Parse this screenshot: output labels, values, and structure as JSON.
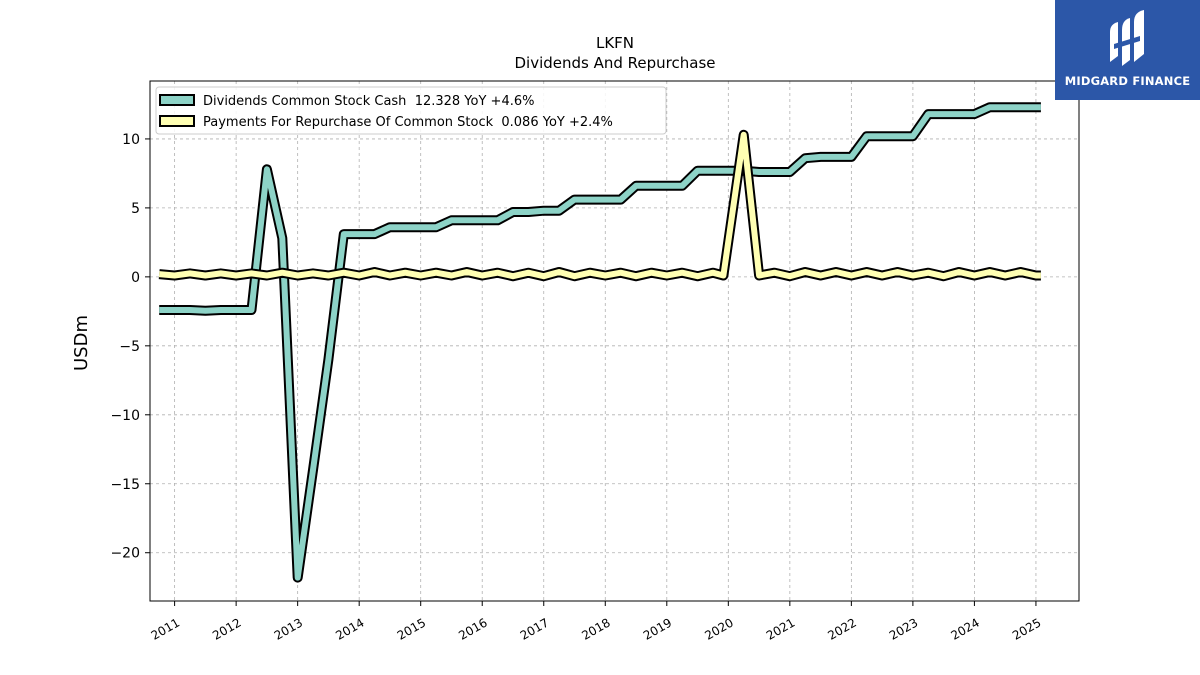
{
  "chart_data": {
    "type": "line",
    "title": "LKFN",
    "subtitle": "Dividends And Repurchase",
    "ylabel": "USDm",
    "xlabel": "",
    "xlim": [
      2010.6,
      2025.7
    ],
    "ylim": [
      -23.5,
      14.2
    ],
    "yticks": [
      -20,
      -15,
      -10,
      -5,
      0,
      5,
      10
    ],
    "xticks": [
      "2011",
      "2012",
      "2013",
      "2014",
      "2015",
      "2016",
      "2017",
      "2018",
      "2019",
      "2020",
      "2021",
      "2022",
      "2023",
      "2024",
      "2025"
    ],
    "grid": true,
    "legend_position": "upper left",
    "series": [
      {
        "name": "Dividends Common Stock Cash  12.328 YoY +4.6%",
        "color": "#8dd3c7",
        "points": [
          [
            2010.75,
            -2.4
          ],
          [
            2011.0,
            -2.4
          ],
          [
            2011.25,
            -2.4
          ],
          [
            2011.5,
            -2.45
          ],
          [
            2011.75,
            -2.4
          ],
          [
            2012.0,
            -2.4
          ],
          [
            2012.25,
            -2.4
          ],
          [
            2012.5,
            7.8
          ],
          [
            2012.75,
            2.8
          ],
          [
            2013.0,
            -21.8
          ],
          [
            2013.25,
            -14.0
          ],
          [
            2013.5,
            -6.0
          ],
          [
            2013.75,
            3.1
          ],
          [
            2014.0,
            3.1
          ],
          [
            2014.25,
            3.1
          ],
          [
            2014.5,
            3.6
          ],
          [
            2014.75,
            3.6
          ],
          [
            2015.0,
            3.6
          ],
          [
            2015.25,
            3.6
          ],
          [
            2015.5,
            4.1
          ],
          [
            2015.75,
            4.1
          ],
          [
            2016.0,
            4.1
          ],
          [
            2016.25,
            4.1
          ],
          [
            2016.5,
            4.7
          ],
          [
            2016.75,
            4.7
          ],
          [
            2017.0,
            4.8
          ],
          [
            2017.25,
            4.8
          ],
          [
            2017.5,
            5.6
          ],
          [
            2017.75,
            5.6
          ],
          [
            2018.0,
            5.6
          ],
          [
            2018.25,
            5.6
          ],
          [
            2018.5,
            6.6
          ],
          [
            2018.75,
            6.6
          ],
          [
            2019.0,
            6.6
          ],
          [
            2019.25,
            6.6
          ],
          [
            2019.5,
            7.7
          ],
          [
            2019.75,
            7.7
          ],
          [
            2020.0,
            7.7
          ],
          [
            2020.25,
            7.7
          ],
          [
            2020.5,
            7.6
          ],
          [
            2020.75,
            7.6
          ],
          [
            2021.0,
            7.6
          ],
          [
            2021.25,
            8.6
          ],
          [
            2021.5,
            8.7
          ],
          [
            2021.75,
            8.7
          ],
          [
            2022.0,
            8.7
          ],
          [
            2022.25,
            10.2
          ],
          [
            2022.5,
            10.2
          ],
          [
            2022.75,
            10.2
          ],
          [
            2023.0,
            10.2
          ],
          [
            2023.25,
            11.8
          ],
          [
            2023.5,
            11.8
          ],
          [
            2023.75,
            11.8
          ],
          [
            2024.0,
            11.8
          ],
          [
            2024.25,
            12.3
          ],
          [
            2024.5,
            12.3
          ],
          [
            2024.75,
            12.3
          ],
          [
            2025.0,
            12.3
          ],
          [
            2025.08,
            12.3
          ]
        ]
      },
      {
        "name": "Payments For Repurchase Of Common Stock  0.086 YoY +2.4%",
        "color": "#ffffb3",
        "points": [
          [
            2010.75,
            0.2
          ],
          [
            2011.0,
            0.1
          ],
          [
            2011.25,
            0.25
          ],
          [
            2011.5,
            0.1
          ],
          [
            2011.75,
            0.25
          ],
          [
            2012.0,
            0.1
          ],
          [
            2012.25,
            0.25
          ],
          [
            2012.5,
            0.1
          ],
          [
            2012.75,
            0.3
          ],
          [
            2013.0,
            0.1
          ],
          [
            2013.25,
            0.25
          ],
          [
            2013.5,
            0.1
          ],
          [
            2013.75,
            0.3
          ],
          [
            2014.0,
            0.1
          ],
          [
            2014.25,
            0.35
          ],
          [
            2014.5,
            0.1
          ],
          [
            2014.75,
            0.3
          ],
          [
            2015.0,
            0.1
          ],
          [
            2015.25,
            0.3
          ],
          [
            2015.5,
            0.1
          ],
          [
            2015.75,
            0.35
          ],
          [
            2016.0,
            0.1
          ],
          [
            2016.25,
            0.3
          ],
          [
            2016.5,
            0.05
          ],
          [
            2016.75,
            0.3
          ],
          [
            2017.0,
            0.05
          ],
          [
            2017.25,
            0.35
          ],
          [
            2017.5,
            0.05
          ],
          [
            2017.75,
            0.3
          ],
          [
            2018.0,
            0.1
          ],
          [
            2018.25,
            0.3
          ],
          [
            2018.5,
            0.05
          ],
          [
            2018.75,
            0.3
          ],
          [
            2019.0,
            0.1
          ],
          [
            2019.25,
            0.3
          ],
          [
            2019.5,
            0.05
          ],
          [
            2019.75,
            0.3
          ],
          [
            2019.92,
            0.1
          ],
          [
            2020.25,
            10.3
          ],
          [
            2020.5,
            0.1
          ],
          [
            2020.75,
            0.3
          ],
          [
            2021.0,
            0.05
          ],
          [
            2021.25,
            0.35
          ],
          [
            2021.5,
            0.1
          ],
          [
            2021.75,
            0.35
          ],
          [
            2022.0,
            0.1
          ],
          [
            2022.25,
            0.35
          ],
          [
            2022.5,
            0.1
          ],
          [
            2022.75,
            0.35
          ],
          [
            2023.0,
            0.1
          ],
          [
            2023.25,
            0.3
          ],
          [
            2023.5,
            0.05
          ],
          [
            2023.75,
            0.35
          ],
          [
            2024.0,
            0.1
          ],
          [
            2024.25,
            0.35
          ],
          [
            2024.5,
            0.1
          ],
          [
            2024.75,
            0.35
          ],
          [
            2025.0,
            0.1
          ],
          [
            2025.08,
            0.1
          ]
        ]
      }
    ]
  },
  "logo": {
    "text": "MIDGARD FINANCE",
    "color": "#2c57a8"
  }
}
